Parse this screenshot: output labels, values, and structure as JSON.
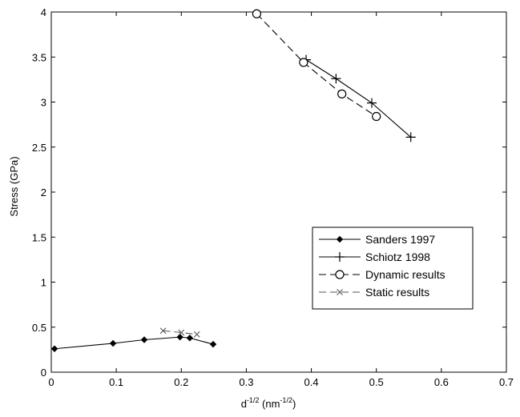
{
  "chart_data": {
    "type": "line",
    "xlabel": {
      "base": "d",
      "base_sup": "-1/2",
      "unit_open": " (nm",
      "unit_sup": "-1/2",
      "unit_close": ")"
    },
    "ylabel": "Stress (GPa)",
    "xlim": [
      0,
      0.7
    ],
    "ylim": [
      0,
      4
    ],
    "xticks": [
      0,
      0.1,
      0.2,
      0.3,
      0.4,
      0.5,
      0.6,
      0.7
    ],
    "yticks": [
      0,
      0.5,
      1,
      1.5,
      2,
      2.5,
      3,
      3.5,
      4
    ],
    "xtick_labels": [
      "0",
      "0.1",
      "0.2",
      "0.3",
      "0.4",
      "0.5",
      "0.6",
      "0.7"
    ],
    "ytick_labels": [
      "0",
      "0.5",
      "1",
      "1.5",
      "2",
      "2.5",
      "3",
      "3.5",
      "4"
    ],
    "grid": false,
    "legend_position": "lower-right",
    "series": [
      {
        "name": "Sanders 1997",
        "marker": "diamond",
        "line": "solid",
        "color": "#000000",
        "x": [
          0.005,
          0.095,
          0.143,
          0.198,
          0.213,
          0.249
        ],
        "y": [
          0.26,
          0.32,
          0.36,
          0.39,
          0.38,
          0.31
        ]
      },
      {
        "name": "Schiotz 1998",
        "marker": "plus",
        "line": "solid",
        "color": "#000000",
        "x": [
          0.392,
          0.438,
          0.493,
          0.553
        ],
        "y": [
          3.47,
          3.26,
          2.99,
          2.61
        ]
      },
      {
        "name": "Dynamic results",
        "marker": "circle",
        "line": "dashed",
        "color": "#000000",
        "x": [
          0.316,
          0.388,
          0.447,
          0.5
        ],
        "y": [
          3.98,
          3.44,
          3.09,
          2.84
        ]
      },
      {
        "name": "Static results",
        "marker": "x",
        "line": "dashed",
        "color": "#555555",
        "x": [
          0.172,
          0.2,
          0.224
        ],
        "y": [
          0.46,
          0.44,
          0.42
        ]
      }
    ]
  }
}
